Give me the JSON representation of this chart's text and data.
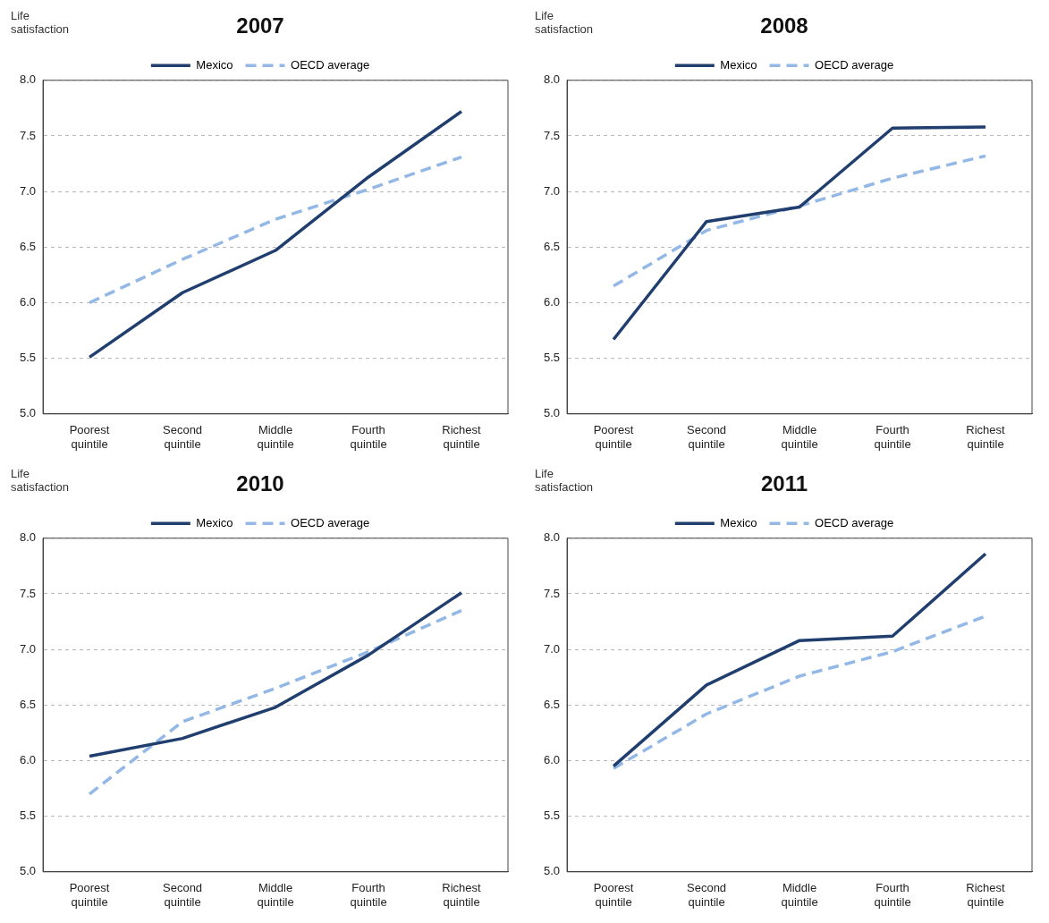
{
  "chart_data": [
    {
      "type": "line",
      "title": "2007",
      "ylabel": "Life satisfaction",
      "categories": [
        "Poorest quintile",
        "Second quintile",
        "Middle quintile",
        "Fourth quintile",
        "Richest quintile"
      ],
      "ylim": [
        5.0,
        8.0
      ],
      "yticks": [
        {
          "value": 5,
          "label": "5.0"
        },
        5.5,
        {
          "value": 6,
          "label": "6.0"
        },
        6.5,
        {
          "value": 7,
          "label": "7.0"
        },
        7.5,
        {
          "value": 8,
          "label": "8.0"
        }
      ],
      "grid": "y",
      "legend": "top",
      "marker": "none",
      "series": [
        {
          "name": "Mexico",
          "color": "#213f6e",
          "line_style": "solid",
          "values": [
            5.51,
            6.09,
            6.47,
            7.13,
            7.72
          ]
        },
        {
          "name": "OECD average",
          "color": "#94b8e6",
          "line_style": "dashed",
          "values": [
            6.0,
            6.39,
            6.75,
            7.02,
            7.31
          ]
        }
      ]
    },
    {
      "type": "line",
      "title": "2008",
      "ylabel": "Life satisfaction",
      "categories": [
        "Poorest quintile",
        "Second quintile",
        "Middle quintile",
        "Fourth quintile",
        "Richest quintile"
      ],
      "ylim": [
        5.0,
        8.0
      ],
      "yticks": [
        {
          "value": 5,
          "label": "5.0"
        },
        5.5,
        {
          "value": 6,
          "label": "6.0"
        },
        6.5,
        {
          "value": 7,
          "label": "7.0"
        },
        7.5,
        {
          "value": 8,
          "label": "8.0"
        }
      ],
      "grid": "y",
      "legend": "top",
      "marker": "none",
      "series": [
        {
          "name": "Mexico",
          "color": "#213f6e",
          "line_style": "solid",
          "values": [
            5.67,
            6.73,
            6.86,
            7.57,
            7.58
          ]
        },
        {
          "name": "OECD average",
          "color": "#94b8e6",
          "line_style": "dashed",
          "values": [
            6.15,
            6.65,
            6.87,
            7.12,
            7.32
          ]
        }
      ]
    },
    {
      "type": "line",
      "title": "2010",
      "ylabel": "Life satisfaction",
      "categories": [
        "Poorest quintile",
        "Second quintile",
        "Middle quintile",
        "Fourth quintile",
        "Richest quintile"
      ],
      "ylim": [
        5.0,
        8.0
      ],
      "yticks": [
        {
          "value": 5,
          "label": "5.0"
        },
        5.5,
        {
          "value": 6,
          "label": "6.0"
        },
        6.5,
        {
          "value": 7,
          "label": "7.0"
        },
        7.5,
        {
          "value": 8,
          "label": "8.0"
        }
      ],
      "grid": "y",
      "legend": "top",
      "marker": "none",
      "series": [
        {
          "name": "Mexico",
          "color": "#213f6e",
          "line_style": "solid",
          "values": [
            6.04,
            6.2,
            6.48,
            6.95,
            7.51
          ]
        },
        {
          "name": "OECD average",
          "color": "#94b8e6",
          "line_style": "dashed",
          "values": [
            5.7,
            6.35,
            6.65,
            6.98,
            7.35
          ]
        }
      ]
    },
    {
      "type": "line",
      "title": "2011",
      "ylabel": "Life satisfaction",
      "categories": [
        "Poorest quintile",
        "Second quintile",
        "Middle quintile",
        "Fourth quintile",
        "Richest quintile"
      ],
      "ylim": [
        5.0,
        8.0
      ],
      "yticks": [
        {
          "value": 5,
          "label": "5.0"
        },
        5.5,
        {
          "value": 6,
          "label": "6.0"
        },
        6.5,
        {
          "value": 7,
          "label": "7.0"
        },
        7.5,
        {
          "value": 8,
          "label": "8.0"
        }
      ],
      "grid": "y",
      "legend": "top",
      "marker": "none",
      "series": [
        {
          "name": "Mexico",
          "color": "#213f6e",
          "line_style": "solid",
          "values": [
            5.95,
            6.68,
            7.08,
            7.12,
            7.86
          ]
        },
        {
          "name": "OECD average",
          "color": "#94b8e6",
          "line_style": "dashed",
          "values": [
            5.93,
            6.42,
            6.76,
            6.98,
            7.3
          ]
        }
      ]
    }
  ]
}
